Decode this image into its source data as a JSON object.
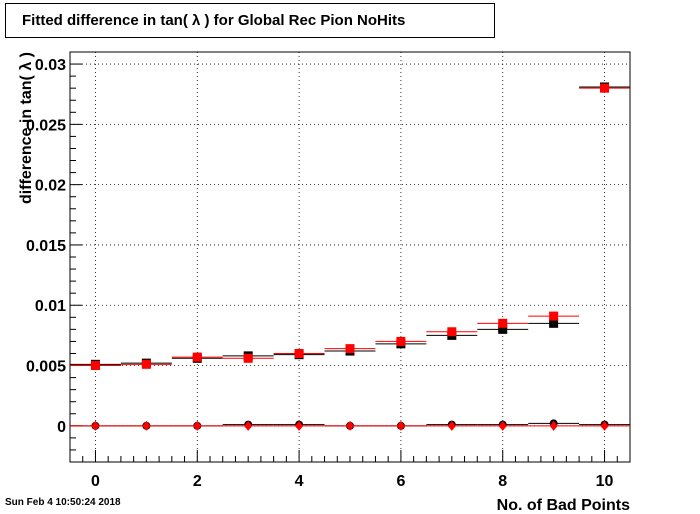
{
  "title": "Fitted difference in tan( λ ) for Global Rec Pion NoHits",
  "timestamp": "Sun Feb  4 10:50:24 2018",
  "chart_data": {
    "type": "scatter",
    "title": "Fitted difference in tan( λ ) for Global Rec Pion NoHits",
    "xlabel": "No. of Bad Points",
    "ylabel": "difference in tan( λ )",
    "xlim": [
      -0.5,
      10.5
    ],
    "ylim": [
      -0.003,
      0.031
    ],
    "grid": true,
    "x_ticks": [
      0,
      2,
      4,
      6,
      8,
      10
    ],
    "y_ticks": [
      0,
      0.005,
      0.01,
      0.015,
      0.02,
      0.025,
      0.03
    ],
    "y_tick_labels": [
      "0",
      "0.005",
      "0.01",
      "0.015",
      "0.02",
      "0.025",
      "0.03"
    ],
    "x": [
      0,
      1,
      2,
      3,
      4,
      5,
      6,
      7,
      8,
      9,
      10
    ],
    "series": [
      {
        "marker": "square",
        "color": "#000000",
        "values": [
          0.0051,
          0.0052,
          0.0056,
          0.0058,
          0.0059,
          0.0062,
          0.0068,
          0.0075,
          0.008,
          0.0085,
          0.0281
        ]
      },
      {
        "marker": "square",
        "color": "#ff0000",
        "values": [
          0.005,
          0.0051,
          0.0057,
          0.0056,
          0.006,
          0.0064,
          0.007,
          0.0078,
          0.0085,
          0.0091,
          0.028
        ]
      },
      {
        "marker": "circle",
        "color": "#000000",
        "values": [
          0.0,
          0.0,
          0.0,
          0.0001,
          0.0001,
          0.0,
          0.0,
          0.0001,
          0.0001,
          0.0002,
          0.0001
        ]
      },
      {
        "marker": "diamond",
        "color": "#ff0000",
        "values": [
          0.0,
          0.0,
          0.0,
          0.0,
          0.0,
          0.0,
          0.0,
          0.0,
          0.0,
          0.0,
          0.0
        ]
      }
    ]
  }
}
